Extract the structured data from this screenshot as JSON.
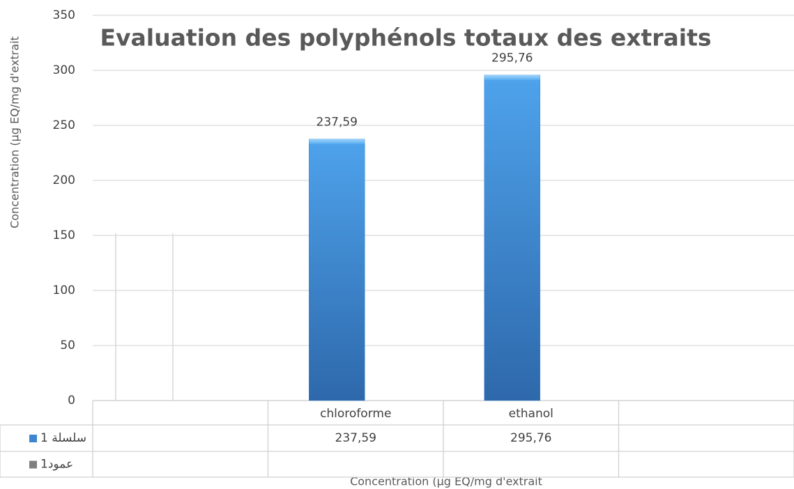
{
  "chart_data": {
    "type": "bar",
    "title": "Evaluation des polyphénols totaux des extraits",
    "y_label": "Concentration (µg EQ/mg d'extrait",
    "x_label": "Concentration (µg EQ/mg d'extrait",
    "categories": [
      null,
      "chloroforme",
      "ethanol",
      null
    ],
    "series": [
      {
        "name": "سلسلة 1",
        "color": "#3d85d1",
        "values": [
          null,
          237.59,
          295.76,
          null
        ],
        "value_labels": [
          null,
          "237,59",
          "295,76",
          null
        ]
      },
      {
        "name": "عمود1",
        "color": "#7f7f7f",
        "values": [
          null,
          null,
          null,
          null
        ]
      }
    ],
    "ylim": [
      0,
      350
    ],
    "yticks": [
      0,
      50,
      100,
      150,
      200,
      250,
      300,
      350
    ],
    "grid": true,
    "data_table": true
  }
}
